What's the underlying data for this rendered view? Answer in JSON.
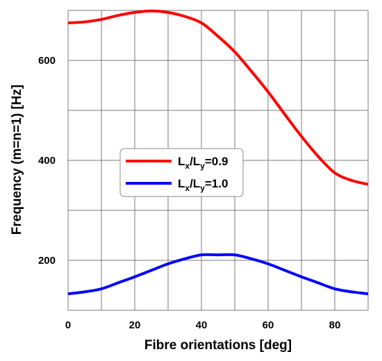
{
  "chart_data": {
    "type": "line",
    "xlabel": "Fibre orientations [deg]",
    "ylabel": "Frequency (m=n=1) [Hz]",
    "xlim": [
      0,
      90
    ],
    "ylim": [
      100,
      700
    ],
    "xticks": [
      0,
      20,
      40,
      60,
      80
    ],
    "yticks": [
      200,
      400,
      600
    ],
    "grid": true,
    "legend_position": "center-left",
    "x": [
      0,
      5,
      10,
      15,
      20,
      25,
      30,
      35,
      40,
      45,
      50,
      55,
      60,
      65,
      70,
      75,
      80,
      85,
      90
    ],
    "series": [
      {
        "legend": {
          "main1": "L",
          "sub1": "x",
          "mid": "/L",
          "sub2": "y",
          "tail": "=0.9"
        },
        "color": "#ff0000",
        "values": [
          675,
          677,
          682,
          690,
          696,
          699,
          696,
          688,
          675,
          648,
          617,
          578,
          537,
          492,
          448,
          408,
          375,
          360,
          352
        ]
      },
      {
        "legend": {
          "main1": "L",
          "sub1": "x",
          "mid": "/L",
          "sub2": "y",
          "tail": "=1.0"
        },
        "color": "#0000ff",
        "values": [
          133,
          137,
          143,
          155,
          167,
          180,
          193,
          203,
          211,
          211,
          211,
          203,
          193,
          180,
          167,
          155,
          143,
          137,
          133
        ]
      }
    ]
  }
}
